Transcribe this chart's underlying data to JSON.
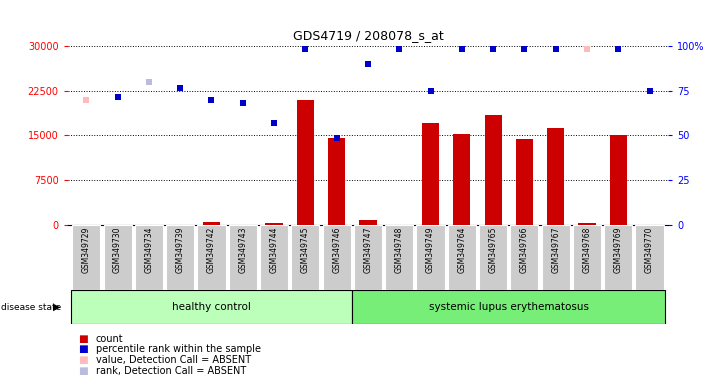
{
  "title": "GDS4719 / 208078_s_at",
  "samples": [
    "GSM349729",
    "GSM349730",
    "GSM349734",
    "GSM349739",
    "GSM349742",
    "GSM349743",
    "GSM349744",
    "GSM349745",
    "GSM349746",
    "GSM349747",
    "GSM349748",
    "GSM349749",
    "GSM349764",
    "GSM349765",
    "GSM349766",
    "GSM349767",
    "GSM349768",
    "GSM349769",
    "GSM349770"
  ],
  "count_values": [
    0,
    0,
    0,
    0,
    400,
    0,
    300,
    21000,
    14500,
    700,
    0,
    17000,
    15200,
    18500,
    14400,
    16200,
    300,
    15000,
    0
  ],
  "value_dots": [
    21000,
    21500,
    24000,
    23000,
    21000,
    20500,
    17000,
    29500,
    14500,
    27000,
    29500,
    22500,
    29500,
    29500,
    29500,
    29500,
    29500,
    29500,
    22500
  ],
  "absent_value_indices": [
    0,
    16
  ],
  "absent_rank_indices": [
    2
  ],
  "ylim_left": [
    0,
    30000
  ],
  "ylim_right": [
    0,
    100
  ],
  "yticks_left": [
    0,
    7500,
    15000,
    22500,
    30000
  ],
  "ytick_labels_left": [
    "0",
    "7500",
    "15000",
    "22500",
    "30000"
  ],
  "yticks_right": [
    0,
    25,
    50,
    75,
    100
  ],
  "ytick_labels_right": [
    "0",
    "25",
    "50",
    "75",
    "100%"
  ],
  "bar_color": "#cc0000",
  "dot_color_present": "#0000cc",
  "dot_color_absent_value": "#ffbbbb",
  "dot_color_absent_rank": "#bbbbdd",
  "bg_color": "#ffffff",
  "healthy_bg": "#bbffbb",
  "sle_bg": "#77ee77",
  "xticklabel_bg": "#cccccc",
  "n_healthy": 9,
  "n_sle": 10
}
